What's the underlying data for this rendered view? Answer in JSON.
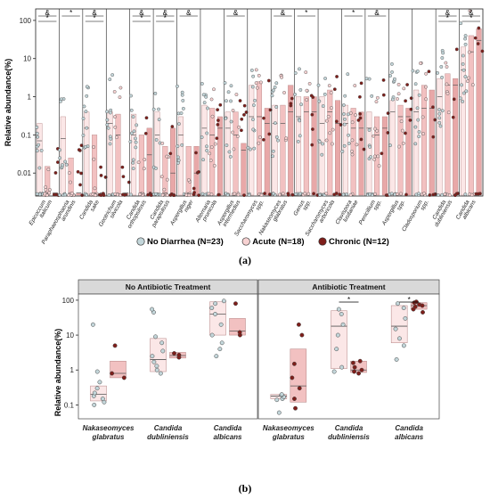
{
  "colors": {
    "no_diarrhea_fill": "#c3d6da",
    "acute_fill": "#f7d2d2",
    "chronic_fill": "#7e1e1a",
    "box_light": "#fbe7e7",
    "box_acute": "#f2c1c1",
    "box_chronic": "#e8a8a8",
    "facet_header": "#d9d9d9"
  },
  "chart_data": [
    {
      "panel_label": "(a)",
      "type": "box-strip",
      "ylabel": "Relative abundance(%)",
      "yscale": "log",
      "ylim": [
        0.0025,
        200
      ],
      "yticks": [
        "0.01",
        "0.1",
        "1",
        "10",
        "100"
      ],
      "ytick_values": [
        0.01,
        0.1,
        1,
        10,
        100
      ],
      "legend": {
        "position": "bottom",
        "items": [
          {
            "label": "No Diarrhea (N=23)",
            "color": "#c3d6da"
          },
          {
            "label": "Acute (N=18)",
            "color": "#f7d2d2"
          },
          {
            "label": "Chronic (N=12)",
            "color": "#7e1e1a"
          }
        ]
      },
      "significance_symbols": [
        "&",
        "*"
      ],
      "categories": [
        {
          "line1": "Epicoccum",
          "line2": "italicum",
          "sig": [
            "&",
            "*"
          ],
          "medians": [
            0.07,
            0.003,
            0.003
          ],
          "q3": [
            0.2,
            0.015,
            0.003
          ]
        },
        {
          "line1": "Paraphaeosphaeria",
          "line2": "arundinis",
          "sig": [
            "*"
          ],
          "medians": [
            0.08,
            0.003,
            0.003
          ],
          "q3": [
            0.3,
            0.025,
            0.003
          ]
        },
        {
          "line1": "Candida",
          "line2": "sake",
          "sig": [
            "&",
            "*"
          ],
          "medians": [
            0.15,
            0.003,
            0.003
          ],
          "q3": [
            0.4,
            0.1,
            0.003
          ]
        },
        {
          "line1": "Geotrichum",
          "line2": "silvicola",
          "sig": [],
          "medians": [
            0.2,
            0.1,
            0.003
          ],
          "q3": [
            0.4,
            0.35,
            0.003
          ]
        },
        {
          "line1": "Candida",
          "line2": "orthopsilosis",
          "sig": [
            "&",
            "*"
          ],
          "medians": [
            0.1,
            0.003,
            0.03
          ],
          "q3": [
            0.35,
            0.1,
            0.15
          ]
        },
        {
          "line1": "Candida",
          "line2": "parapsilosis",
          "sig": [
            "&",
            "*"
          ],
          "medians": [
            0.1,
            0.003,
            0.01
          ],
          "q3": [
            0.4,
            0.05,
            0.15
          ]
        },
        {
          "line1": "Aspergillus",
          "line2": "niger",
          "sig": [
            "&"
          ],
          "medians": [
            0.1,
            0.003,
            0.01
          ],
          "q3": [
            0.3,
            0.05,
            0.05
          ]
        },
        {
          "line1": "Alternaria",
          "line2": "prunicola",
          "sig": [],
          "medians": [
            0.15,
            0.1,
            0.15
          ],
          "q3": [
            0.6,
            0.5,
            0.3
          ]
        },
        {
          "line1": "Aspergillus",
          "line2": "intermedius",
          "sig": [
            "&"
          ],
          "medians": [
            0.15,
            0.1,
            0.04
          ],
          "q3": [
            0.4,
            0.4,
            0.06
          ]
        },
        {
          "line1": "Saccharomyces",
          "line2": "spp.",
          "sig": [],
          "medians": [
            0.3,
            0.3,
            0.2
          ],
          "q3": [
            2,
            2.5,
            0.5
          ]
        },
        {
          "line1": "Nakaseomyces",
          "line2": "glabratus",
          "sig": [
            "&"
          ],
          "medians": [
            0.2,
            0.2,
            0.4
          ],
          "q3": [
            0.6,
            0.6,
            2
          ]
        },
        {
          "line1": "Genus",
          "line2": "spp.",
          "sig": [
            "*"
          ],
          "medians": [
            0.3,
            0.4,
            0.4
          ],
          "q3": [
            1,
            1,
            1
          ]
        },
        {
          "line1": "Saccharomyces",
          "line2": "arboricola",
          "sig": [],
          "medians": [
            0.2,
            0.4,
            0.2
          ],
          "q3": [
            1,
            1.5,
            0.8
          ]
        },
        {
          "line1": "Clavispora",
          "line2": "lusitaniae",
          "sig": [
            "*"
          ],
          "medians": [
            0.2,
            0.15,
            0.15
          ],
          "q3": [
            0.6,
            0.5,
            0.4
          ]
        },
        {
          "line1": "Penicillium",
          "line2": "spp.",
          "sig": [
            "&"
          ],
          "medians": [
            0.15,
            0.1,
            0.15
          ],
          "q3": [
            0.4,
            0.3,
            0.3
          ]
        },
        {
          "line1": "Aspergillus",
          "line2": "spp.",
          "sig": [],
          "medians": [
            0.4,
            0.3,
            0.3
          ],
          "q3": [
            0.8,
            0.6,
            0.5
          ]
        },
        {
          "line1": "Cladosporium",
          "line2": "spp.",
          "sig": [],
          "medians": [
            0.4,
            0.5,
            0.5
          ],
          "q3": [
            1.5,
            2,
            1.5
          ]
        },
        {
          "line1": "Candida",
          "line2": "dubliniensis",
          "sig": [
            "&",
            "*"
          ],
          "medians": [
            1,
            2,
            2
          ],
          "q3": [
            3,
            4,
            3
          ]
        },
        {
          "line1": "Candida",
          "line2": "albicans",
          "sig": [
            "&",
            "*"
          ],
          "medians": [
            5,
            15,
            30
          ],
          "q3": [
            20,
            40,
            60
          ]
        }
      ]
    },
    {
      "panel_label": "(b)",
      "type": "box-strip",
      "ylabel": "Relative abundance(%)",
      "yscale": "log",
      "ylim": [
        0.04,
        150
      ],
      "yticks": [
        "0.1",
        "1",
        "10",
        "100"
      ],
      "ytick_values": [
        0.1,
        1,
        10,
        100
      ],
      "facets": [
        {
          "title": "No Antibiotic Treatment",
          "groups": [
            {
              "line1": "Nakaseomyces",
              "line2": "glabratus",
              "sig": "",
              "light": {
                "q1": 0.13,
                "median": 0.2,
                "q3": 0.35,
                "points": [
                  0.1,
                  0.12,
                  0.15,
                  0.18,
                  0.22,
                  0.3,
                  0.45,
                  0.9,
                  20
                ]
              },
              "dark": {
                "q1": 0.6,
                "median": 0.8,
                "q3": 1.8,
                "points": [
                  0.6,
                  0.8,
                  5
                ]
              }
            },
            {
              "line1": "Candida",
              "line2": "dubliniensis",
              "sig": "",
              "light": {
                "q1": 0.9,
                "median": 2,
                "q3": 8,
                "points": [
                  0.8,
                  1,
                  1.3,
                  1.7,
                  2.5,
                  3.5,
                  6,
                  9,
                  45,
                  55
                ]
              },
              "dark": {
                "q1": 2.2,
                "median": 2.6,
                "q3": 3.2,
                "points": [
                  2.3,
                  2.7,
                  3
                ]
              }
            },
            {
              "line1": "Candida",
              "line2": "albicans",
              "sig": "",
              "light": {
                "q1": 10,
                "median": 40,
                "q3": 90,
                "points": [
                  2.5,
                  4,
                  6,
                  10,
                  20,
                  40,
                  60,
                  80,
                  95
                ]
              },
              "dark": {
                "q1": 10,
                "median": 13,
                "q3": 30,
                "points": [
                  10,
                  12,
                  80
                ]
              }
            }
          ]
        },
        {
          "title": "Antibiotic Treatment",
          "groups": [
            {
              "line1": "Nakaseomyces",
              "line2": "glabratus",
              "sig": "",
              "light": {
                "q1": 0.15,
                "median": 0.18,
                "q3": 0.2,
                "points": [
                  0.06,
                  0.14,
                  0.15,
                  0.17,
                  0.19,
                  0.2
                ]
              },
              "dark": {
                "q1": 0.12,
                "median": 0.35,
                "q3": 4,
                "points": [
                  0.08,
                  0.15,
                  0.3,
                  0.6,
                  1.5,
                  10,
                  20
                ]
              }
            },
            {
              "line1": "Candida",
              "line2": "dubliniensis",
              "sig": "*",
              "light": {
                "q1": 1.1,
                "median": 18,
                "q3": 50,
                "points": [
                  0.9,
                  1.2,
                  4,
                  10,
                  20,
                  40,
                  55
                ]
              },
              "dark": {
                "q1": 0.85,
                "median": 1,
                "q3": 1.8,
                "points": [
                  0.8,
                  0.9,
                  1,
                  1.2,
                  1.6,
                  1.8
                ]
              }
            },
            {
              "line1": "Candida",
              "line2": "albicans",
              "sig": "*",
              "light": {
                "q1": 6,
                "median": 18,
                "q3": 70,
                "points": [
                  2,
                  5,
                  8,
                  15,
                  30,
                  60,
                  80
                ]
              },
              "dark": {
                "q1": 55,
                "median": 70,
                "q3": 85,
                "points": [
                  45,
                  55,
                  65,
                  70,
                  75,
                  85,
                  90
                ]
              }
            }
          ]
        }
      ]
    }
  ]
}
